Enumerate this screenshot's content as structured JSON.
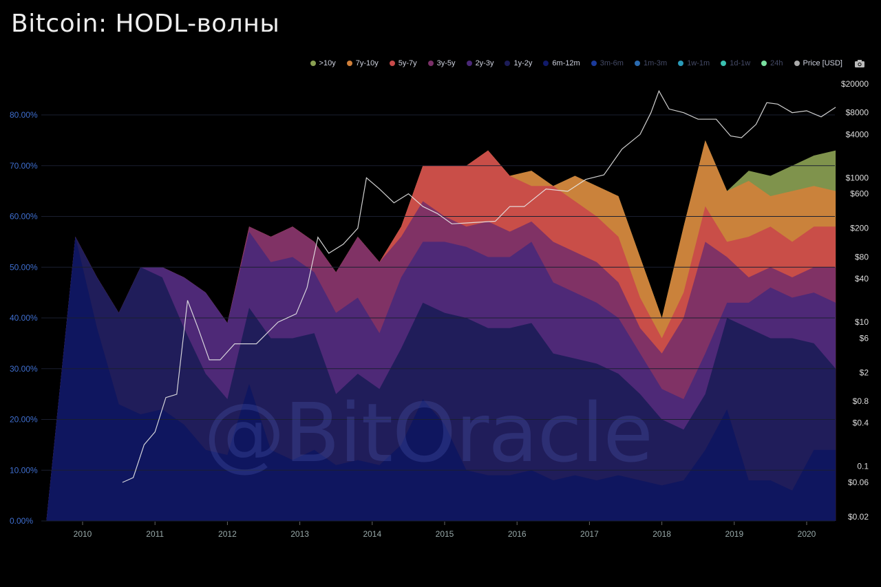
{
  "header": {
    "title": "Bitcoin: HODL-волны"
  },
  "watermark": "@BitOracle",
  "legend": [
    {
      "label": ">10y",
      "color": "#8aa052",
      "muted": false
    },
    {
      "label": "7y-10y",
      "color": "#d0803a",
      "muted": false
    },
    {
      "label": "5y-7y",
      "color": "#c94a4a",
      "muted": false
    },
    {
      "label": "3y-5y",
      "color": "#7a3068",
      "muted": false
    },
    {
      "label": "2y-3y",
      "color": "#4a2878",
      "muted": false
    },
    {
      "label": "1y-2y",
      "color": "#1c1c58",
      "muted": false
    },
    {
      "label": "6m-12m",
      "color": "#111a6a",
      "muted": false
    },
    {
      "label": "3m-6m",
      "color": "#1a3a9a",
      "muted": true
    },
    {
      "label": "1m-3m",
      "color": "#2a6ab0",
      "muted": true
    },
    {
      "label": "1w-1m",
      "color": "#2a9ab8",
      "muted": true
    },
    {
      "label": "1d-1w",
      "color": "#3ac0b0",
      "muted": true
    },
    {
      "label": "24h",
      "color": "#7ae0a0",
      "muted": true
    },
    {
      "label": "Price [USD]",
      "color": "#aaaaaa",
      "muted": false
    }
  ],
  "camera_icon": "camera-icon",
  "chart_data": {
    "type": "area",
    "title": "Bitcoin: HODL-волны",
    "stacked": true,
    "x_ticks": [
      "2010",
      "2011",
      "2012",
      "2013",
      "2014",
      "2015",
      "2016",
      "2017",
      "2018",
      "2019",
      "2020"
    ],
    "y_left_ticks": [
      "0.00%",
      "10.00%",
      "20.00%",
      "30.00%",
      "40.00%",
      "50.00%",
      "60.00%",
      "70.00%",
      "80.00%"
    ],
    "y_left_range": [
      0,
      80
    ],
    "y_right_ticks": [
      "$0.02",
      "$0.06",
      "0.1",
      "$0.4",
      "$0.8",
      "$2",
      "$6",
      "$10",
      "$40",
      "$80",
      "$200",
      "$600",
      "$1000",
      "$4000",
      "$8000",
      "$20000"
    ],
    "y_right_scale": "log",
    "x": [
      2009.5,
      2009.9,
      2010.2,
      2010.5,
      2010.8,
      2011.1,
      2011.4,
      2011.7,
      2012.0,
      2012.3,
      2012.6,
      2012.9,
      2013.2,
      2013.5,
      2013.8,
      2014.1,
      2014.4,
      2014.7,
      2015.0,
      2015.3,
      2015.6,
      2015.9,
      2016.2,
      2016.5,
      2016.8,
      2017.1,
      2017.4,
      2017.7,
      2018.0,
      2018.3,
      2018.6,
      2018.9,
      2019.2,
      2019.5,
      2019.8,
      2020.1,
      2020.4
    ],
    "series_cumulative": [
      {
        "name": "6m-12m",
        "values": [
          0,
          56,
          38,
          23,
          21,
          22,
          19,
          14,
          13,
          27,
          14,
          12,
          14,
          11,
          12,
          11,
          15,
          24,
          19,
          10,
          9,
          9,
          10,
          8,
          9,
          8,
          9,
          8,
          7,
          8,
          14,
          22,
          8,
          8,
          6,
          14,
          14
        ]
      },
      {
        "name": "1y-2y",
        "values": [
          0,
          56,
          48,
          41,
          50,
          48,
          38,
          29,
          24,
          42,
          36,
          36,
          37,
          25,
          29,
          26,
          34,
          43,
          41,
          40,
          38,
          38,
          39,
          33,
          32,
          31,
          29,
          25,
          20,
          18,
          25,
          40,
          38,
          36,
          36,
          35,
          30
        ]
      },
      {
        "name": "2y-3y",
        "values": [
          0,
          56,
          48,
          41,
          50,
          50,
          48,
          45,
          39,
          57,
          51,
          52,
          49,
          41,
          44,
          37,
          48,
          55,
          55,
          54,
          52,
          52,
          55,
          47,
          45,
          43,
          40,
          33,
          26,
          24,
          33,
          43,
          43,
          46,
          44,
          45,
          43
        ]
      },
      {
        "name": "3y-5y",
        "values": [
          0,
          56,
          48,
          41,
          50,
          50,
          48,
          45,
          39,
          58,
          56,
          58,
          55,
          49,
          56,
          51,
          56,
          63,
          60,
          58,
          59,
          57,
          59,
          55,
          53,
          51,
          47,
          38,
          33,
          40,
          55,
          52,
          48,
          50,
          48,
          50,
          50
        ]
      },
      {
        "name": "5y-7y",
        "values": [
          0,
          56,
          48,
          41,
          50,
          50,
          48,
          45,
          39,
          58,
          56,
          58,
          55,
          49,
          56,
          51,
          58,
          70,
          70,
          70,
          73,
          68,
          66,
          66,
          63,
          60,
          56,
          44,
          36,
          45,
          62,
          55,
          56,
          58,
          55,
          58,
          58
        ]
      },
      {
        "name": "7y-10y",
        "values": [
          0,
          56,
          48,
          41,
          50,
          50,
          48,
          45,
          39,
          58,
          56,
          58,
          55,
          49,
          56,
          51,
          58,
          70,
          70,
          70,
          73,
          68,
          69,
          66,
          68,
          66,
          64,
          52,
          40,
          58,
          75,
          65,
          67,
          64,
          65,
          66,
          65
        ]
      },
      {
        "name": ">10y",
        "values": [
          0,
          56,
          48,
          41,
          50,
          50,
          48,
          45,
          39,
          58,
          56,
          58,
          55,
          49,
          56,
          51,
          58,
          70,
          70,
          70,
          73,
          68,
          69,
          66,
          68,
          66,
          64,
          52,
          40,
          58,
          75,
          65,
          69,
          68,
          70,
          72,
          73
        ]
      }
    ],
    "price": {
      "name": "Price [USD]",
      "x": [
        2010.55,
        2010.7,
        2010.85,
        2011.0,
        2011.15,
        2011.3,
        2011.45,
        2011.6,
        2011.75,
        2011.9,
        2012.1,
        2012.4,
        2012.7,
        2012.95,
        2013.1,
        2013.25,
        2013.4,
        2013.6,
        2013.8,
        2013.92,
        2014.1,
        2014.3,
        2014.5,
        2014.7,
        2014.9,
        2015.1,
        2015.4,
        2015.7,
        2015.9,
        2016.1,
        2016.4,
        2016.7,
        2016.95,
        2017.2,
        2017.45,
        2017.7,
        2017.85,
        2017.96,
        2018.1,
        2018.3,
        2018.5,
        2018.75,
        2018.95,
        2019.1,
        2019.3,
        2019.45,
        2019.6,
        2019.8,
        2020.0,
        2020.2,
        2020.4
      ],
      "values": [
        0.06,
        0.07,
        0.2,
        0.3,
        0.9,
        1,
        20,
        8,
        3,
        3,
        5,
        5,
        10,
        13,
        30,
        150,
        90,
        120,
        200,
        1000,
        700,
        450,
        600,
        400,
        320,
        230,
        240,
        250,
        400,
        400,
        700,
        650,
        950,
        1100,
        2500,
        4000,
        8000,
        16000,
        9000,
        8000,
        6500,
        6500,
        3800,
        3600,
        5500,
        11000,
        10500,
        8000,
        8500,
        7000,
        9500
      ]
    }
  }
}
